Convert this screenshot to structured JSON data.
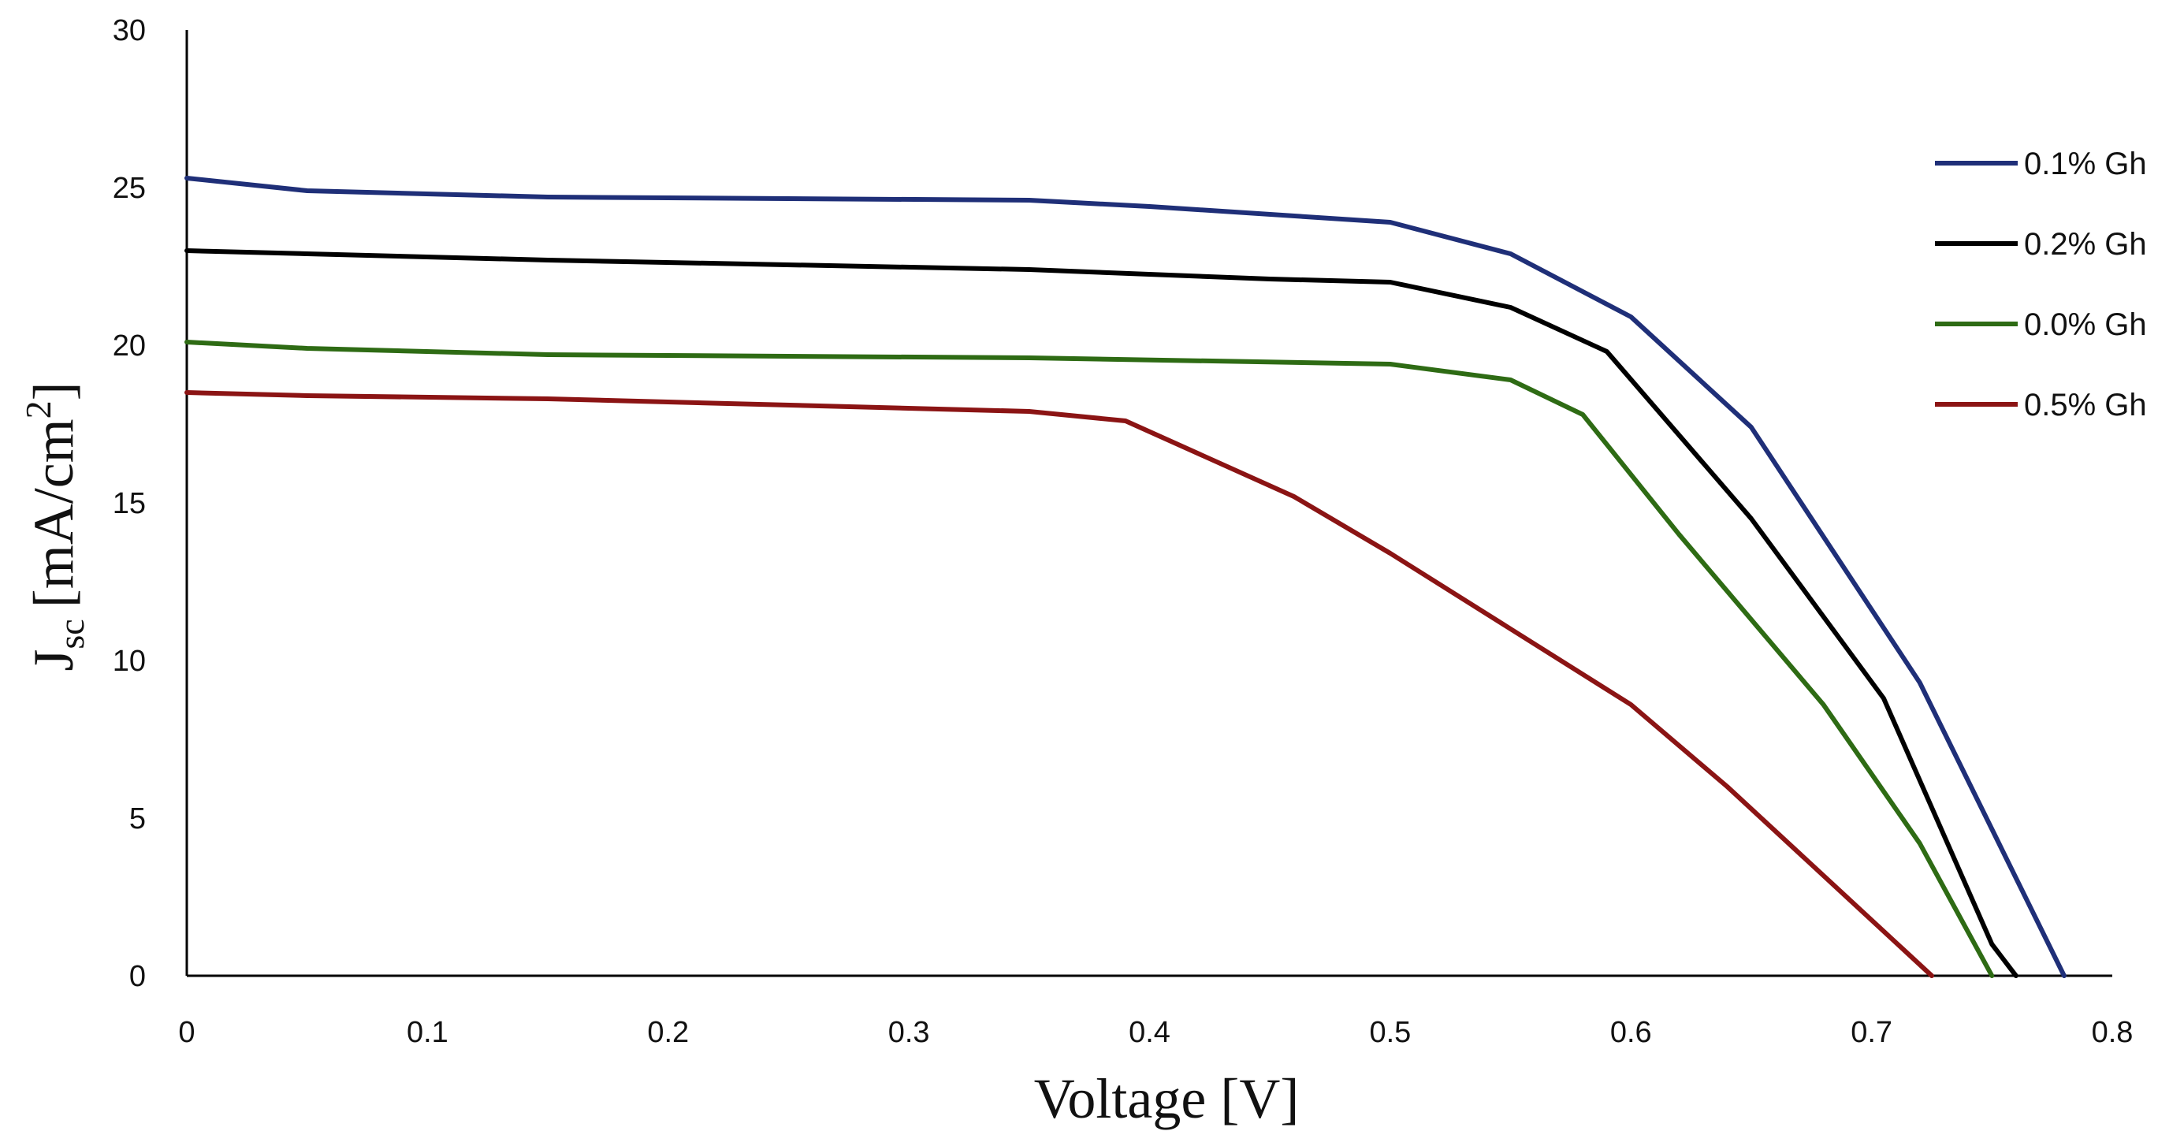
{
  "chart_data": {
    "type": "line",
    "title": "",
    "xlabel": "Voltage [V]",
    "ylabel": {
      "main": "J",
      "sub": "sc",
      "units": "[mA/cm",
      "sup": "2",
      "close": "]"
    },
    "xlim": [
      0,
      0.8
    ],
    "ylim": [
      0,
      30
    ],
    "x_ticks": [
      "0",
      "0.1",
      "0.2",
      "0.3",
      "0.4",
      "0.5",
      "0.6",
      "0.7",
      "0.8"
    ],
    "y_ticks": [
      "0",
      "5",
      "10",
      "15",
      "20",
      "25",
      "30"
    ],
    "grid": false,
    "legend_position": "right",
    "series": [
      {
        "name": "0.1% Gh",
        "color": "#1f2f78",
        "x": [
          0,
          0.05,
          0.15,
          0.35,
          0.4,
          0.5,
          0.55,
          0.6,
          0.65,
          0.72,
          0.78
        ],
        "y": [
          25.3,
          24.9,
          24.7,
          24.6,
          24.4,
          23.9,
          22.9,
          20.9,
          17.4,
          9.3,
          0
        ]
      },
      {
        "name": "0.2% Gh",
        "color": "#000000",
        "x": [
          0,
          0.05,
          0.15,
          0.35,
          0.45,
          0.5,
          0.55,
          0.59,
          0.65,
          0.705,
          0.75,
          0.76
        ],
        "y": [
          23.0,
          22.9,
          22.7,
          22.4,
          22.1,
          22.0,
          21.2,
          19.8,
          14.5,
          8.8,
          1.0,
          0
        ]
      },
      {
        "name": "0.0% Gh",
        "color": "#2e6b14",
        "x": [
          0,
          0.05,
          0.15,
          0.35,
          0.5,
          0.55,
          0.58,
          0.62,
          0.68,
          0.72,
          0.75
        ],
        "y": [
          20.1,
          19.9,
          19.7,
          19.6,
          19.4,
          18.9,
          17.8,
          14.0,
          8.6,
          4.2,
          0
        ]
      },
      {
        "name": "0.5% Gh",
        "color": "#8b1414",
        "x": [
          0,
          0.05,
          0.15,
          0.35,
          0.39,
          0.46,
          0.5,
          0.55,
          0.6,
          0.64,
          0.725
        ],
        "y": [
          18.5,
          18.4,
          18.3,
          17.9,
          17.6,
          15.2,
          13.4,
          11.0,
          8.6,
          6.0,
          0
        ]
      }
    ]
  }
}
